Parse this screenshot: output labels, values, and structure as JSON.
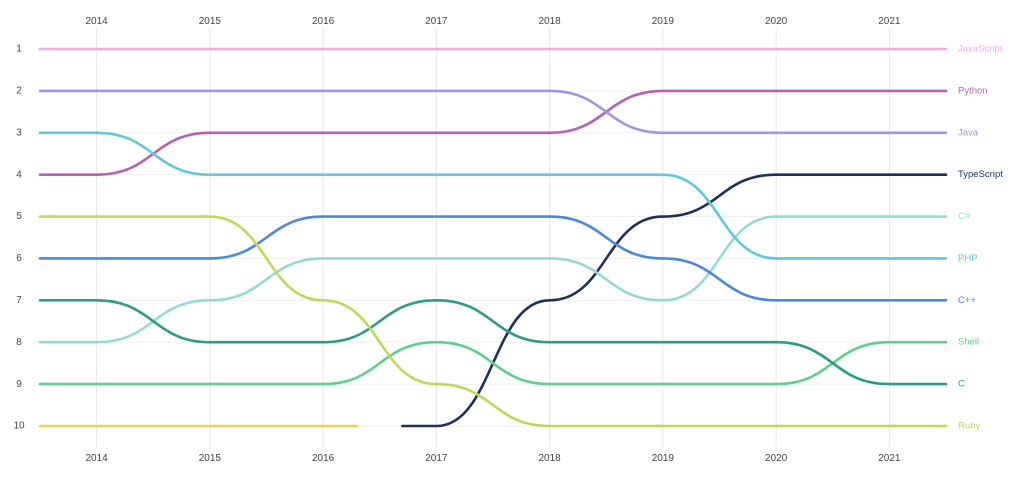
{
  "chart_data": {
    "type": "line",
    "title": "",
    "xlabel": "",
    "ylabel": "",
    "x": [
      "2014",
      "2015",
      "2016",
      "2017",
      "2018",
      "2019",
      "2020",
      "2021"
    ],
    "x_range": [
      2013.5,
      2021.5
    ],
    "y_ticks": [
      "1",
      "2",
      "3",
      "4",
      "5",
      "6",
      "7",
      "8",
      "9",
      "10"
    ],
    "ylim": [
      1,
      10
    ],
    "grid": "vertical",
    "series": [
      {
        "name": "JavaScript",
        "color": "#f4a6f0",
        "points": [
          [
            2013.5,
            1
          ],
          [
            2014,
            1
          ],
          [
            2015,
            1
          ],
          [
            2016,
            1
          ],
          [
            2017,
            1
          ],
          [
            2018,
            1
          ],
          [
            2019,
            1
          ],
          [
            2020,
            1
          ],
          [
            2021,
            1
          ],
          [
            2021.5,
            1
          ]
        ]
      },
      {
        "name": "Python",
        "color": "#b95fb4",
        "points": [
          [
            2013.5,
            4
          ],
          [
            2014,
            4
          ],
          [
            2015,
            3
          ],
          [
            2016,
            3
          ],
          [
            2017,
            3
          ],
          [
            2018,
            3
          ],
          [
            2019,
            2
          ],
          [
            2020,
            2
          ],
          [
            2021,
            2
          ],
          [
            2021.5,
            2
          ]
        ]
      },
      {
        "name": "Java",
        "color": "#a394ea",
        "points": [
          [
            2013.5,
            2
          ],
          [
            2014,
            2
          ],
          [
            2015,
            2
          ],
          [
            2016,
            2
          ],
          [
            2017,
            2
          ],
          [
            2018,
            2
          ],
          [
            2019,
            3
          ],
          [
            2020,
            3
          ],
          [
            2021,
            3
          ],
          [
            2021.5,
            3
          ]
        ]
      },
      {
        "name": "TypeScript",
        "color": "#1e2f5c",
        "points": [
          [
            2016.7,
            10
          ],
          [
            2017,
            10
          ],
          [
            2018,
            7
          ],
          [
            2019,
            5
          ],
          [
            2020,
            4
          ],
          [
            2021,
            4
          ],
          [
            2021.5,
            4
          ]
        ]
      },
      {
        "name": "C#",
        "color": "#93dcd6",
        "points": [
          [
            2013.5,
            8
          ],
          [
            2014,
            8
          ],
          [
            2015,
            7
          ],
          [
            2016,
            6
          ],
          [
            2017,
            6
          ],
          [
            2018,
            6
          ],
          [
            2019,
            7
          ],
          [
            2020,
            5
          ],
          [
            2021,
            5
          ],
          [
            2021.5,
            5
          ]
        ]
      },
      {
        "name": "PHP",
        "color": "#5fc8e0",
        "points": [
          [
            2013.5,
            3
          ],
          [
            2014,
            3
          ],
          [
            2015,
            4
          ],
          [
            2016,
            4
          ],
          [
            2017,
            4
          ],
          [
            2018,
            4
          ],
          [
            2019,
            4
          ],
          [
            2020,
            6
          ],
          [
            2021,
            6
          ],
          [
            2021.5,
            6
          ]
        ]
      },
      {
        "name": "C++",
        "color": "#4a89dc",
        "points": [
          [
            2013.5,
            6
          ],
          [
            2014,
            6
          ],
          [
            2015,
            6
          ],
          [
            2016,
            5
          ],
          [
            2017,
            5
          ],
          [
            2018,
            5
          ],
          [
            2019,
            6
          ],
          [
            2020,
            7
          ],
          [
            2021,
            7
          ],
          [
            2021.5,
            7
          ]
        ]
      },
      {
        "name": "Shell",
        "color": "#5ccf91",
        "points": [
          [
            2013.5,
            9
          ],
          [
            2014,
            9
          ],
          [
            2015,
            9
          ],
          [
            2016,
            9
          ],
          [
            2017,
            8
          ],
          [
            2018,
            9
          ],
          [
            2019,
            9
          ],
          [
            2020,
            9
          ],
          [
            2021,
            8
          ],
          [
            2021.5,
            8
          ]
        ]
      },
      {
        "name": "C",
        "color": "#2a9d84",
        "points": [
          [
            2013.5,
            7
          ],
          [
            2014,
            7
          ],
          [
            2015,
            8
          ],
          [
            2016,
            8
          ],
          [
            2017,
            7
          ],
          [
            2018,
            8
          ],
          [
            2019,
            8
          ],
          [
            2020,
            8
          ],
          [
            2021,
            9
          ],
          [
            2021.5,
            9
          ]
        ]
      },
      {
        "name": "Ruby",
        "color": "#c2d65a",
        "points": [
          [
            2013.5,
            5
          ],
          [
            2014,
            5
          ],
          [
            2015,
            5
          ],
          [
            2016,
            7
          ],
          [
            2017,
            9
          ],
          [
            2018,
            10
          ],
          [
            2019,
            10
          ],
          [
            2020,
            10
          ],
          [
            2021,
            10
          ],
          [
            2021.5,
            10
          ]
        ]
      },
      {
        "name": "",
        "color": "#f7ce5b",
        "points": [
          [
            2013.5,
            10
          ],
          [
            2014,
            10
          ],
          [
            2015,
            10
          ],
          [
            2016,
            10
          ],
          [
            2016.3,
            10
          ]
        ]
      }
    ]
  }
}
